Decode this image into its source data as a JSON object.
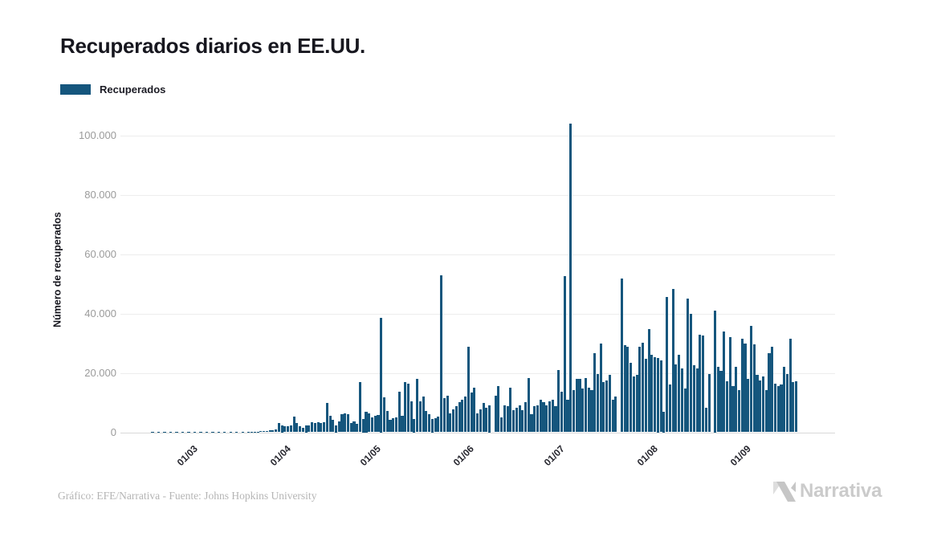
{
  "title": "Recuperados diarios en EE.UU.",
  "legend": {
    "label": "Recuperados",
    "color": "#15567d"
  },
  "footer": {
    "credit": "Gráfico: EFE/Narrativa - Fuente: Johns Hopkins University"
  },
  "logo": {
    "text": "Narrativa",
    "text_color": "#cbcbcb",
    "mark_light": "#dedede",
    "mark_dark": "#c6c6c6"
  },
  "chart_data": {
    "type": "bar",
    "title": "Recuperados diarios en EE.UU.",
    "xlabel": "",
    "ylabel": "Número de recuperados",
    "series_name": "Recuperados",
    "bar_color": "#15567d",
    "grid": "horizontal",
    "legend_position": "top-left",
    "ylim": [
      0,
      105000
    ],
    "ytick_values": [
      0,
      20000,
      40000,
      60000,
      80000,
      100000
    ],
    "ytick_labels": [
      "0",
      "20.000",
      "40.000",
      "60.000",
      "80.000",
      "100.000"
    ],
    "xtick_labels": [
      "01/03",
      "01/04",
      "01/05",
      "01/06",
      "01/07",
      "01/08",
      "01/09"
    ],
    "dates": [
      "15/02",
      "16/02",
      "17/02",
      "18/02",
      "19/02",
      "20/02",
      "21/02",
      "22/02",
      "23/02",
      "24/02",
      "25/02",
      "26/02",
      "27/02",
      "28/02",
      "29/02",
      "01/03",
      "02/03",
      "03/03",
      "04/03",
      "05/03",
      "06/03",
      "07/03",
      "08/03",
      "09/03",
      "10/03",
      "11/03",
      "12/03",
      "13/03",
      "14/03",
      "15/03",
      "16/03",
      "17/03",
      "18/03",
      "19/03",
      "20/03",
      "21/03",
      "22/03",
      "23/03",
      "24/03",
      "25/03",
      "26/03",
      "27/03",
      "28/03",
      "29/03",
      "30/03",
      "31/03",
      "01/04",
      "02/04",
      "03/04",
      "04/04",
      "05/04",
      "06/04",
      "07/04",
      "08/04",
      "09/04",
      "10/04",
      "11/04",
      "12/04",
      "13/04",
      "14/04",
      "15/04",
      "16/04",
      "17/04",
      "18/04",
      "19/04",
      "20/04",
      "21/04",
      "22/04",
      "23/04",
      "24/04",
      "25/04",
      "26/04",
      "27/04",
      "28/04",
      "29/04",
      "30/04",
      "01/05",
      "02/05",
      "03/05",
      "04/05",
      "05/05",
      "06/05",
      "07/05",
      "08/05",
      "09/05",
      "10/05",
      "11/05",
      "12/05",
      "13/05",
      "14/05",
      "15/05",
      "16/05",
      "17/05",
      "18/05",
      "19/05",
      "20/05",
      "21/05",
      "22/05",
      "23/05",
      "24/05",
      "25/05",
      "26/05",
      "27/05",
      "28/05",
      "29/05",
      "30/05",
      "31/05",
      "01/06",
      "02/06",
      "03/06",
      "04/06",
      "05/06",
      "06/06",
      "07/06",
      "08/06",
      "09/06",
      "10/06",
      "11/06",
      "12/06",
      "13/06",
      "14/06",
      "15/06",
      "16/06",
      "17/06",
      "18/06",
      "19/06",
      "20/06",
      "21/06",
      "22/06",
      "23/06",
      "24/06",
      "25/06",
      "26/06",
      "27/06",
      "28/06",
      "29/06",
      "30/06",
      "01/07",
      "02/07",
      "03/07",
      "04/07",
      "05/07",
      "06/07",
      "07/07",
      "08/07",
      "09/07",
      "10/07",
      "11/07",
      "12/07",
      "13/07",
      "14/07",
      "15/07",
      "16/07",
      "17/07",
      "18/07",
      "19/07",
      "20/07",
      "21/07",
      "22/07",
      "23/07",
      "24/07",
      "25/07",
      "26/07",
      "27/07",
      "28/07",
      "29/07",
      "30/07",
      "31/07",
      "01/08",
      "02/08",
      "03/08",
      "04/08",
      "05/08",
      "06/08",
      "07/08",
      "08/08",
      "09/08",
      "10/08",
      "11/08",
      "12/08",
      "13/08",
      "14/08",
      "15/08",
      "16/08",
      "17/08",
      "18/08",
      "19/08",
      "20/08",
      "21/08",
      "22/08",
      "23/08",
      "24/08",
      "25/08",
      "26/08",
      "27/08",
      "28/08",
      "29/08",
      "30/08",
      "31/08",
      "01/09",
      "02/09",
      "03/09",
      "04/09",
      "05/09",
      "06/09",
      "07/09",
      "08/09",
      "09/09",
      "10/09",
      "11/09",
      "12/09",
      "13/09",
      "14/09",
      "15/09",
      "16/09",
      "17/09",
      "18/09"
    ],
    "values": [
      0,
      0,
      30,
      0,
      40,
      0,
      35,
      0,
      45,
      0,
      40,
      0,
      50,
      0,
      45,
      0,
      50,
      0,
      55,
      0,
      60,
      0,
      60,
      0,
      70,
      0,
      75,
      0,
      80,
      0,
      85,
      0,
      90,
      0,
      100,
      120,
      150,
      180,
      280,
      370,
      460,
      700,
      720,
      900,
      3000,
      2300,
      2000,
      2100,
      2350,
      5300,
      3200,
      2000,
      1400,
      2300,
      2400,
      3400,
      3000,
      3400,
      3100,
      3300,
      10000,
      5500,
      4100,
      2300,
      3700,
      6100,
      6400,
      6000,
      3200,
      3700,
      2800,
      17000,
      4600,
      6900,
      6400,
      5000,
      5500,
      5800,
      38700,
      11900,
      7300,
      4100,
      4800,
      5000,
      13800,
      5500,
      17000,
      16500,
      10500,
      4600,
      18000,
      10500,
      12000,
      7300,
      6000,
      4600,
      4700,
      5200,
      52900,
      11500,
      12400,
      6400,
      7800,
      8900,
      10100,
      11000,
      12000,
      28800,
      13300,
      15000,
      6400,
      7800,
      9800,
      8300,
      9000,
      0,
      12400,
      15600,
      5100,
      9200,
      8700,
      15000,
      7400,
      8300,
      9200,
      7400,
      10100,
      18400,
      6000,
      8700,
      9200,
      11000,
      10100,
      9200,
      10500,
      11000,
      8700,
      21000,
      13800,
      52700,
      11000,
      104000,
      14200,
      17900,
      17900,
      14700,
      18300,
      15100,
      14200,
      26600,
      19700,
      29800,
      17000,
      17400,
      19300,
      11000,
      12000,
      0,
      51800,
      29300,
      28900,
      23400,
      18800,
      19300,
      28900,
      30300,
      24800,
      34800,
      26100,
      25400,
      25000,
      24300,
      6900,
      45600,
      16000,
      48300,
      22900,
      26100,
      21500,
      14700,
      45100,
      39900,
      22500,
      21600,
      33000,
      32600,
      8300,
      19700,
      0,
      41000,
      22000,
      20800,
      33900,
      17100,
      32100,
      15600,
      22000,
      14200,
      31600,
      29800,
      17900,
      35800,
      29600,
      19300,
      17400,
      18800,
      14200,
      26600,
      28900,
      16500,
      15600,
      16200,
      22000,
      19700,
      31600,
      16800,
      17100
    ]
  }
}
